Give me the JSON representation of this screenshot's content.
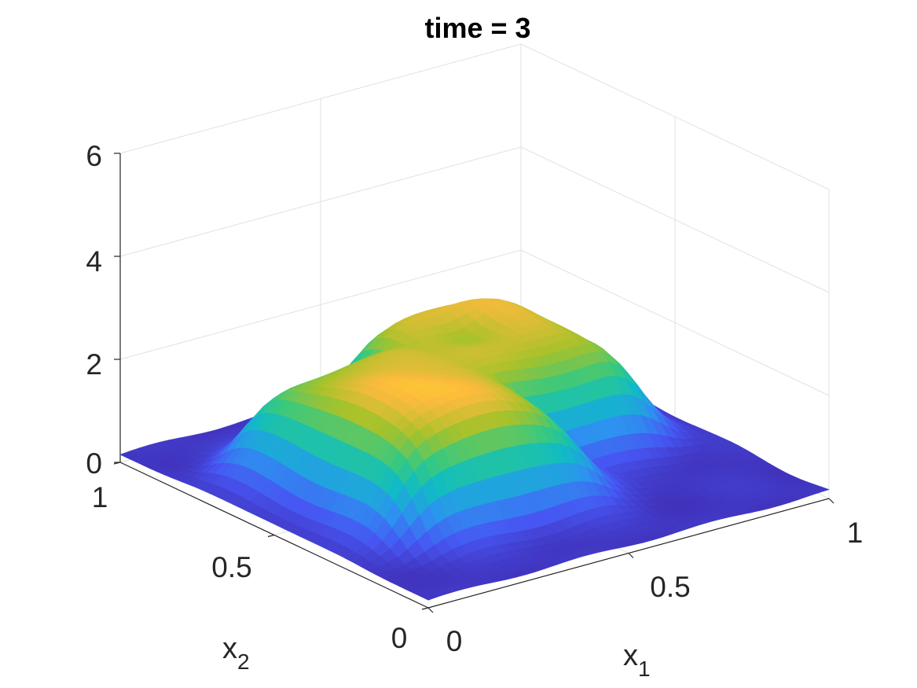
{
  "chart_data": {
    "type": "surface",
    "title": "time = 3",
    "xlabel": "x",
    "xlabel_subscript": "1",
    "ylabel": "x",
    "ylabel_subscript": "2",
    "zlabel": "",
    "xlim": [
      0,
      1
    ],
    "ylim": [
      0,
      1
    ],
    "zlim": [
      0,
      6
    ],
    "x_ticks": [
      "0",
      "0.5",
      "1"
    ],
    "y_ticks": [
      "0",
      "0.5",
      "1"
    ],
    "z_ticks": [
      "0",
      "2",
      "4",
      "6"
    ],
    "grid": true,
    "colormap": "parula",
    "grid_resolution": 41,
    "surface_description": "union of two square plateaus, x1 0.12-0.60 x2 0.22-0.80 and x1 0.40-0.88 x2 0.40-0.88",
    "plateaus": [
      {
        "x1_range": [
          0.12,
          0.6
        ],
        "x2_range": [
          0.22,
          0.8
        ],
        "height": 2.25
      },
      {
        "x1_range": [
          0.4,
          0.88
        ],
        "x2_range": [
          0.4,
          0.88
        ],
        "height": 2.25
      }
    ],
    "dip": {
      "x1": 0.62,
      "x2": 0.68,
      "depth": 0.35
    },
    "baseline": 0.15,
    "max_value": 2.8
  },
  "colors": {
    "parula_low": "#3e26a8",
    "parula_mid": "#13beb8",
    "parula_high": "#f9fb0e",
    "axis": "#262626",
    "grid": "#e1e1e1"
  }
}
